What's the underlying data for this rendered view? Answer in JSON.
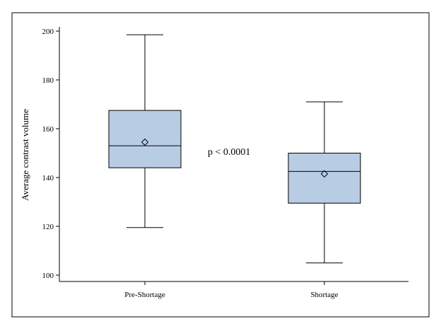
{
  "chart_data": {
    "type": "boxplot",
    "title": "",
    "xlabel": "",
    "ylabel": "Average contrast volume",
    "ylim": [
      100,
      200
    ],
    "yticks": [
      100,
      120,
      140,
      160,
      180,
      200
    ],
    "grid": false,
    "categories": [
      "Pre-Shortage",
      "Shortage"
    ],
    "boxes": [
      {
        "category": "Pre-Shortage",
        "min": 119.5,
        "q1": 144,
        "median": 153,
        "q3": 167.5,
        "max": 198.5,
        "mean": 154.5
      },
      {
        "category": "Shortage",
        "min": 105,
        "q1": 129.5,
        "median": 142.5,
        "q3": 150,
        "max": 171,
        "mean": 141.5
      }
    ],
    "annotations": [
      {
        "text": "p < 0.0001"
      }
    ],
    "colors": {
      "box_fill": "#b8cce4",
      "box_stroke": "#000000"
    }
  }
}
